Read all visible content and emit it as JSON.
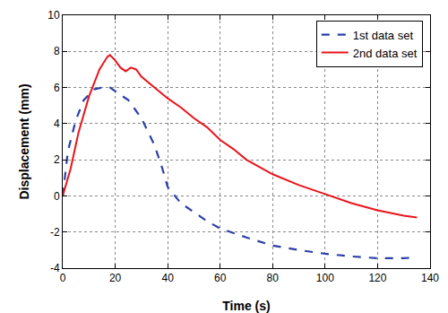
{
  "chart_data": {
    "type": "line",
    "x_label": "Time (s)",
    "y_label": "Displacement (mm)",
    "xlim": [
      0,
      140
    ],
    "xticks": [
      0,
      20,
      40,
      60,
      80,
      100,
      120,
      140
    ],
    "ylim": [
      -4,
      10
    ],
    "yticks": [
      -4,
      -2,
      0,
      2,
      4,
      6,
      8,
      10
    ],
    "grid": true,
    "legend": "top right",
    "series": [
      {
        "name": "1st data set",
        "color": "#2b3fa8",
        "line_style": "dash",
        "x": [
          0,
          2,
          5,
          8,
          12,
          15,
          18,
          20,
          25,
          30,
          35,
          38,
          40,
          45,
          50,
          55,
          60,
          70,
          80,
          90,
          100,
          110,
          120,
          130,
          135
        ],
        "values": [
          0,
          2.5,
          4.2,
          5.3,
          5.9,
          6.0,
          6.0,
          5.8,
          5.3,
          4.3,
          2.8,
          1.5,
          0.5,
          -0.4,
          -0.9,
          -1.4,
          -1.8,
          -2.3,
          -2.75,
          -3.0,
          -3.2,
          -3.35,
          -3.45,
          -3.45,
          -3.4
        ]
      },
      {
        "name": "2nd data set",
        "color": "#e8141b",
        "line_style": "solid",
        "x": [
          0,
          3,
          6,
          10,
          14,
          17,
          18,
          20,
          22,
          24,
          26,
          28,
          30,
          35,
          40,
          45,
          50,
          55,
          60,
          65,
          70,
          80,
          90,
          100,
          110,
          120,
          130,
          135
        ],
        "values": [
          0,
          1.5,
          3.5,
          5.5,
          7.0,
          7.7,
          7.8,
          7.5,
          7.1,
          6.9,
          7.1,
          7.0,
          6.6,
          6.0,
          5.4,
          4.9,
          4.3,
          3.8,
          3.1,
          2.6,
          2.0,
          1.2,
          0.6,
          0.1,
          -0.4,
          -0.8,
          -1.1,
          -1.2
        ]
      }
    ]
  }
}
